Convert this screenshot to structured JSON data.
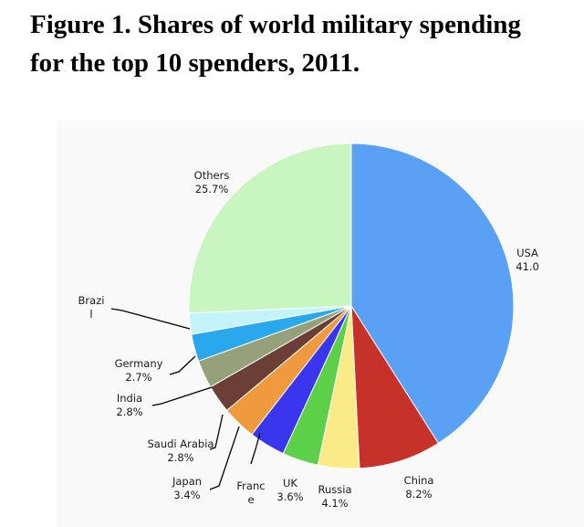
{
  "title": {
    "label": "Figure 1.",
    "line1": "Shares of world military spending",
    "line2": "for the top 10 spenders, 2011."
  },
  "chart_data": {
    "type": "pie",
    "title": "Shares of world military spending for the top 10 spenders, 2011.",
    "unit": "%",
    "start": "12 o'clock",
    "direction": "clockwise",
    "slices": [
      {
        "name": "USA",
        "label_lines": [
          "USA",
          "41.0"
        ],
        "value": 41.0,
        "color": "#5aa0f5"
      },
      {
        "name": "China",
        "label_lines": [
          "China",
          "8.2%"
        ],
        "value": 8.2,
        "color": "#c63129"
      },
      {
        "name": "Russia",
        "label_lines": [
          "Russia",
          "4.1%"
        ],
        "value": 4.1,
        "color": "#fbeb86"
      },
      {
        "name": "UK",
        "label_lines": [
          "UK",
          "3.6%"
        ],
        "value": 3.6,
        "color": "#5bd048"
      },
      {
        "name": "France",
        "label_lines": [
          "Franc",
          "e"
        ],
        "value": 3.6,
        "color": "#3a36ee"
      },
      {
        "name": "Japan",
        "label_lines": [
          "Japan",
          "3.4%"
        ],
        "value": 3.4,
        "color": "#f09a3f"
      },
      {
        "name": "Saudi Arabia",
        "label_lines": [
          "Saudi Arabia",
          "2.8%"
        ],
        "value": 2.8,
        "color": "#6b3e36"
      },
      {
        "name": "India",
        "label_lines": [
          "India",
          "2.8%"
        ],
        "value": 2.8,
        "color": "#96a07a"
      },
      {
        "name": "Germany",
        "label_lines": [
          "Germany",
          "2.7%"
        ],
        "value": 2.7,
        "color": "#2aa8ee"
      },
      {
        "name": "Brazil",
        "label_lines": [
          "Brazi",
          "l"
        ],
        "value": 2.1,
        "color": "#c4f4fb"
      },
      {
        "name": "Others",
        "label_lines": [
          "Others",
          "25.7%"
        ],
        "value": 25.7,
        "color": "#c8f5c0"
      }
    ]
  }
}
